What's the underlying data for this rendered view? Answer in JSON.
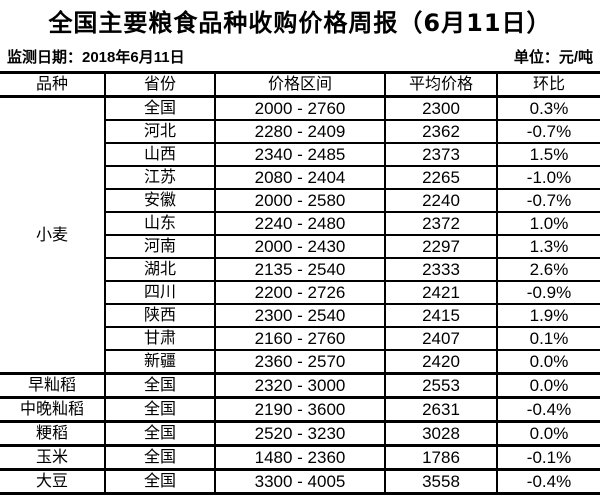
{
  "title": "全国主要粮食品种收购价格周报（6月11日）",
  "meta": {
    "monitor_date": "监测日期：2018年6月11日",
    "unit": "单位：元/吨"
  },
  "table": {
    "headers": [
      "品种",
      "省份",
      "价格区间",
      "平均价格",
      "环比"
    ],
    "groups": [
      {
        "variety": "小麦",
        "rows": [
          {
            "province": "全国",
            "range": "2000 - 2760",
            "avg": "2300",
            "chg": "0.3%"
          },
          {
            "province": "河北",
            "range": "2280 - 2409",
            "avg": "2362",
            "chg": "-0.7%"
          },
          {
            "province": "山西",
            "range": "2340 - 2485",
            "avg": "2373",
            "chg": "1.5%"
          },
          {
            "province": "江苏",
            "range": "2080 - 2404",
            "avg": "2265",
            "chg": "-1.0%"
          },
          {
            "province": "安徽",
            "range": "2000 - 2580",
            "avg": "2240",
            "chg": "-0.7%"
          },
          {
            "province": "山东",
            "range": "2240 - 2480",
            "avg": "2372",
            "chg": "1.0%"
          },
          {
            "province": "河南",
            "range": "2000 - 2430",
            "avg": "2297",
            "chg": "1.3%"
          },
          {
            "province": "湖北",
            "range": "2135 - 2540",
            "avg": "2333",
            "chg": "2.6%"
          },
          {
            "province": "四川",
            "range": "2200 - 2726",
            "avg": "2421",
            "chg": "-0.9%"
          },
          {
            "province": "陕西",
            "range": "2300 - 2540",
            "avg": "2415",
            "chg": "1.9%"
          },
          {
            "province": "甘肃",
            "range": "2160 - 2760",
            "avg": "2407",
            "chg": "0.1%"
          },
          {
            "province": "新疆",
            "range": "2360 - 2570",
            "avg": "2420",
            "chg": "0.0%"
          }
        ]
      },
      {
        "variety": "早籼稻",
        "rows": [
          {
            "province": "全国",
            "range": "2320 - 3000",
            "avg": "2553",
            "chg": "0.0%"
          }
        ]
      },
      {
        "variety": "中晚籼稻",
        "rows": [
          {
            "province": "全国",
            "range": "2190 - 3600",
            "avg": "2631",
            "chg": "-0.4%"
          }
        ]
      },
      {
        "variety": "粳稻",
        "rows": [
          {
            "province": "全国",
            "range": "2520 - 3230",
            "avg": "3028",
            "chg": "0.0%"
          }
        ]
      },
      {
        "variety": "玉米",
        "rows": [
          {
            "province": "全国",
            "range": "1480 - 2360",
            "avg": "1786",
            "chg": "-0.1%"
          }
        ]
      },
      {
        "variety": "大豆",
        "rows": [
          {
            "province": "全国",
            "range": "3300 - 4005",
            "avg": "3558",
            "chg": "-0.4%"
          }
        ]
      }
    ]
  }
}
